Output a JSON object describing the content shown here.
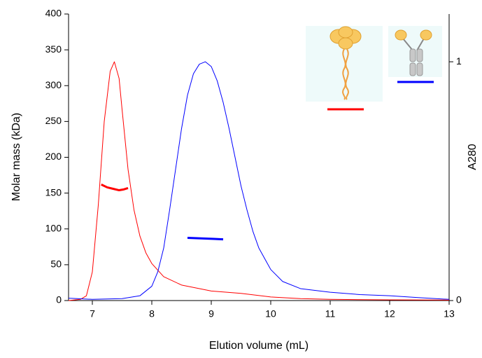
{
  "chart_data": {
    "type": "line",
    "xlabel": "Elution volume (mL)",
    "ylabel": "Molar mass (kDa)",
    "y2label": "A280",
    "xlim": [
      6.6,
      13
    ],
    "xticks": [
      7,
      8,
      9,
      10,
      11,
      12,
      13
    ],
    "ylim": [
      0,
      400
    ],
    "yticks": [
      0,
      50,
      100,
      150,
      200,
      250,
      300,
      350,
      400
    ],
    "y2lim": [
      0,
      1.2
    ],
    "y2ticks": [
      0,
      1
    ],
    "grid": false,
    "series": [
      {
        "color": "#ff0000",
        "axis": "y2",
        "line_width": 1,
        "x": [
          6.6,
          6.8,
          6.9,
          7.0,
          7.1,
          7.2,
          7.3,
          7.37,
          7.45,
          7.5,
          7.6,
          7.7,
          7.8,
          7.9,
          8.0,
          8.2,
          8.5,
          9.0,
          9.5,
          10.0,
          10.5,
          11.0,
          12.0,
          13.0
        ],
        "values": [
          0,
          0.005,
          0.02,
          0.12,
          0.4,
          0.75,
          0.96,
          1.0,
          0.93,
          0.8,
          0.55,
          0.38,
          0.27,
          0.2,
          0.155,
          0.1,
          0.065,
          0.04,
          0.03,
          0.015,
          0.008,
          0.005,
          0.003,
          0.002
        ]
      },
      {
        "color": "#0000ff",
        "axis": "y2",
        "line_width": 1,
        "x": [
          6.6,
          7.0,
          7.5,
          7.8,
          8.0,
          8.1,
          8.2,
          8.3,
          8.4,
          8.5,
          8.6,
          8.7,
          8.8,
          8.9,
          9.0,
          9.1,
          9.2,
          9.3,
          9.4,
          9.5,
          9.6,
          9.7,
          9.8,
          10.0,
          10.2,
          10.5,
          11.0,
          11.5,
          12.0,
          12.5,
          13.0
        ],
        "values": [
          0.01,
          0.005,
          0.008,
          0.02,
          0.06,
          0.12,
          0.22,
          0.38,
          0.55,
          0.72,
          0.86,
          0.95,
          0.99,
          1.0,
          0.98,
          0.92,
          0.83,
          0.72,
          0.6,
          0.48,
          0.38,
          0.29,
          0.22,
          0.13,
          0.08,
          0.05,
          0.035,
          0.025,
          0.02,
          0.012,
          0.005
        ]
      },
      {
        "color": "#ff0000",
        "axis": "y",
        "line_width": 3,
        "x": [
          7.15,
          7.25,
          7.35,
          7.45,
          7.52,
          7.6
        ],
        "values": [
          162,
          158,
          156,
          154,
          155,
          157
        ]
      },
      {
        "color": "#0000ff",
        "axis": "y",
        "line_width": 3,
        "x": [
          8.6,
          8.75,
          8.9,
          9.05,
          9.2
        ],
        "values": [
          87.5,
          87,
          86.5,
          86,
          85.5
        ]
      }
    ]
  }
}
